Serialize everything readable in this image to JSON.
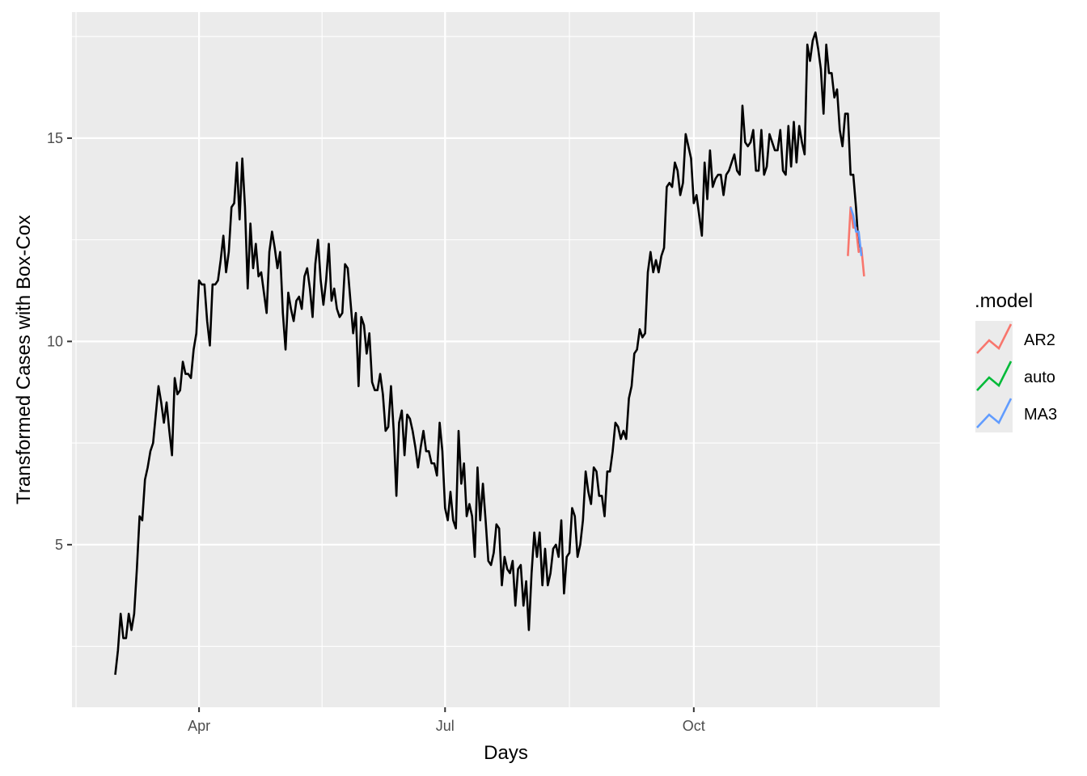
{
  "chart_data": {
    "type": "line",
    "title": "",
    "xlabel": "Days",
    "ylabel": "Transformed Cases with Box-Cox",
    "x_ticks": [
      "Apr",
      "Jul",
      "Oct"
    ],
    "x_tick_dates": [
      "2020-04-01",
      "2020-07-01",
      "2020-10-01"
    ],
    "x_range": [
      "2020-02-14",
      "2020-12-31"
    ],
    "y_ticks": [
      5,
      10,
      15
    ],
    "ylim": [
      1.0,
      18.1
    ],
    "grid": true,
    "legend": {
      "title": ".model",
      "placement": "right"
    },
    "series": [
      {
        "name": "",
        "color": "#000000",
        "x_start": "2020-03-01",
        "x_step_days": 1,
        "values": [
          1.8,
          2.4,
          3.3,
          2.7,
          2.7,
          3.3,
          2.9,
          3.3,
          4.4,
          5.7,
          5.6,
          6.6,
          6.9,
          7.3,
          7.5,
          8.2,
          8.9,
          8.5,
          8.0,
          8.5,
          7.8,
          7.2,
          9.1,
          8.7,
          8.8,
          9.5,
          9.2,
          9.2,
          9.1,
          9.8,
          10.2,
          11.5,
          11.4,
          11.4,
          10.5,
          9.9,
          11.4,
          11.4,
          11.5,
          12.0,
          12.6,
          11.7,
          12.2,
          13.3,
          13.4,
          14.4,
          13.0,
          14.5,
          13.3,
          11.3,
          12.9,
          11.8,
          12.4,
          11.6,
          11.7,
          11.2,
          10.7,
          12.2,
          12.7,
          12.3,
          11.8,
          12.2,
          10.7,
          9.8,
          11.2,
          10.8,
          10.5,
          11.0,
          11.1,
          10.8,
          11.6,
          11.8,
          11.3,
          10.6,
          11.9,
          12.5,
          11.5,
          10.9,
          11.5,
          12.4,
          11.0,
          11.3,
          10.8,
          10.6,
          10.7,
          11.9,
          11.8,
          11.0,
          10.2,
          10.7,
          8.9,
          10.6,
          10.4,
          9.7,
          10.2,
          9.0,
          8.8,
          8.8,
          9.2,
          8.7,
          7.8,
          7.9,
          8.9,
          7.8,
          6.2,
          8.0,
          8.3,
          7.2,
          8.2,
          8.1,
          7.8,
          7.4,
          6.9,
          7.4,
          7.8,
          7.3,
          7.3,
          7.0,
          7.0,
          6.7,
          8.0,
          7.3,
          5.9,
          5.6,
          6.3,
          5.6,
          5.4,
          7.8,
          6.5,
          7.0,
          5.7,
          6.0,
          5.7,
          4.7,
          6.9,
          5.6,
          6.5,
          5.6,
          4.6,
          4.5,
          4.8,
          5.5,
          5.4,
          4.0,
          4.7,
          4.4,
          4.3,
          4.6,
          3.5,
          4.4,
          4.5,
          3.5,
          4.1,
          2.9,
          4.3,
          5.3,
          4.7,
          5.3,
          4.0,
          4.9,
          4.0,
          4.3,
          4.9,
          5.0,
          4.7,
          5.6,
          3.8,
          4.7,
          4.8,
          5.9,
          5.7,
          4.7,
          5.0,
          5.6,
          6.8,
          6.3,
          6.0,
          6.9,
          6.8,
          6.2,
          6.2,
          5.7,
          6.8,
          6.8,
          7.3,
          8.0,
          7.9,
          7.6,
          7.8,
          7.6,
          8.6,
          8.9,
          9.7,
          9.8,
          10.3,
          10.1,
          10.2,
          11.7,
          12.2,
          11.7,
          12.0,
          11.7,
          12.1,
          12.3,
          13.8,
          13.9,
          13.8,
          14.4,
          14.2,
          13.6,
          13.9,
          15.1,
          14.8,
          14.5,
          13.4,
          13.6,
          13.1,
          12.6,
          14.4,
          13.5,
          14.7,
          13.8,
          14.0,
          14.1,
          14.1,
          13.6,
          14.1,
          14.2,
          14.4,
          14.6,
          14.2,
          14.1,
          15.8,
          14.9,
          14.8,
          14.9,
          15.2,
          14.2,
          14.2,
          15.2,
          14.1,
          14.3,
          15.1,
          14.9,
          14.7,
          14.7,
          15.2,
          14.2,
          14.1,
          15.3,
          14.3,
          15.4,
          14.4,
          15.3,
          14.9,
          14.6,
          17.3,
          16.9,
          17.4,
          17.6,
          17.2,
          16.7,
          15.6,
          17.3,
          16.6,
          16.6,
          16.0,
          16.2,
          15.2,
          14.8,
          15.6,
          15.6,
          14.1,
          14.1,
          13.3,
          12.3
        ]
      },
      {
        "name": "AR2",
        "color": "#F8766D",
        "x_start": "2020-11-27",
        "x_step_days": 1,
        "values": [
          12.1,
          13.3,
          12.8,
          12.8,
          12.2,
          12.3,
          11.6
        ]
      },
      {
        "name": "auto",
        "color": "#00BA38",
        "x_start": "2020-11-28",
        "x_step_days": 1,
        "values": []
      },
      {
        "name": "MA3",
        "color": "#619CFF",
        "x_start": "2020-11-28",
        "x_step_days": 1,
        "values": [
          13.3,
          13.1,
          12.7,
          12.7,
          12.1
        ]
      }
    ]
  }
}
